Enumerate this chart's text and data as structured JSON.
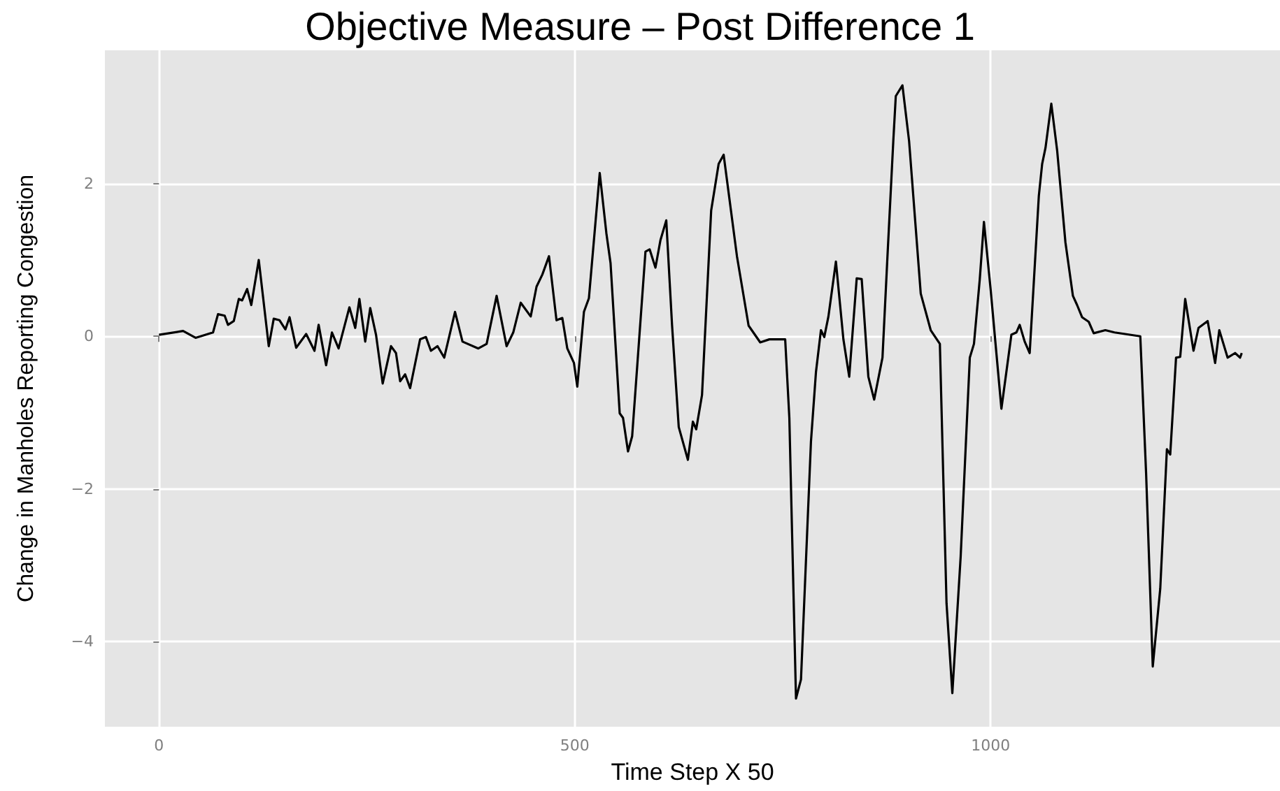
{
  "chart_data": {
    "type": "line",
    "title": "Objective Measure – Post Difference 1",
    "xlabel": "Time Step X 50",
    "ylabel": "Change in Manholes Reporting Congestion",
    "x": [
      0,
      29,
      44,
      65,
      71,
      79,
      83,
      90,
      96,
      100,
      106,
      111,
      120,
      132,
      138,
      145,
      152,
      157,
      165,
      177,
      187,
      192,
      201,
      208,
      216,
      229,
      236,
      241,
      248,
      254,
      261,
      269,
      279,
      285,
      290,
      296,
      302,
      314,
      321,
      327,
      335,
      343,
      356,
      365,
      384,
      394,
      406,
      418,
      426,
      435,
      447,
      454,
      461,
      469,
      478,
      485,
      491,
      499,
      503,
      511,
      517,
      530,
      538,
      543,
      554,
      558,
      564,
      569,
      585,
      590,
      597,
      603,
      610,
      617,
      625,
      636,
      642,
      646,
      653,
      664,
      673,
      679,
      695,
      709,
      723,
      734,
      753,
      758,
      766,
      772,
      784,
      790,
      796,
      800,
      805,
      814,
      823,
      830,
      839,
      845,
      853,
      860,
      870,
      876,
      883,
      886,
      894,
      902,
      916,
      928,
      939,
      947,
      954,
      964,
      975,
      980,
      987,
      992,
      1000,
      1013,
      1025,
      1031,
      1035,
      1041,
      1047,
      1058,
      1062,
      1066,
      1073,
      1080,
      1090,
      1099,
      1104,
      1110,
      1118,
      1124,
      1138,
      1149,
      1180,
      1187,
      1195,
      1204,
      1212,
      1216,
      1223,
      1228,
      1234,
      1244,
      1250,
      1261,
      1270,
      1275,
      1285,
      1294,
      1300,
      1302
    ],
    "series": [
      {
        "color": "#000000",
        "values": [
          0.02,
          0.07,
          -0.02,
          0.05,
          0.29,
          0.27,
          0.15,
          0.2,
          0.49,
          0.47,
          0.62,
          0.41,
          1.0,
          -0.13,
          0.23,
          0.21,
          0.09,
          0.25,
          -0.15,
          0.03,
          -0.19,
          0.15,
          -0.38,
          0.05,
          -0.16,
          0.38,
          0.11,
          0.49,
          -0.07,
          0.37,
          0.02,
          -0.62,
          -0.13,
          -0.22,
          -0.59,
          -0.5,
          -0.68,
          -0.04,
          -0.01,
          -0.19,
          -0.13,
          -0.28,
          0.32,
          -0.07,
          -0.16,
          -0.1,
          0.53,
          -0.13,
          0.05,
          0.44,
          0.26,
          0.65,
          0.81,
          1.05,
          0.21,
          0.24,
          -0.16,
          -0.35,
          -0.66,
          0.32,
          0.5,
          2.14,
          1.35,
          0.96,
          -1.01,
          -1.07,
          -1.51,
          -1.31,
          1.11,
          1.14,
          0.9,
          1.26,
          1.52,
          0.14,
          -1.19,
          -1.62,
          -1.12,
          -1.22,
          -0.77,
          1.65,
          2.26,
          2.38,
          1.05,
          0.14,
          -0.08,
          -0.04,
          -0.04,
          -1.07,
          -4.75,
          -4.5,
          -1.38,
          -0.47,
          0.08,
          -0.01,
          0.26,
          0.98,
          -0.04,
          -0.53,
          0.76,
          0.75,
          -0.53,
          -0.83,
          -0.28,
          1.05,
          2.56,
          3.15,
          3.29,
          2.56,
          0.56,
          0.08,
          -0.1,
          -3.5,
          -4.68,
          -2.89,
          -0.28,
          -0.1,
          0.75,
          1.5,
          0.62,
          -0.95,
          0.02,
          0.05,
          0.15,
          -0.07,
          -0.22,
          1.84,
          2.26,
          2.47,
          3.05,
          2.44,
          1.23,
          0.53,
          0.41,
          0.25,
          0.19,
          0.04,
          0.08,
          0.05,
          0,
          -1.8,
          -4.33,
          -3.31,
          -1.48,
          -1.55,
          -0.28,
          -0.27,
          0.49,
          -0.19,
          0.11,
          0.2,
          -0.35,
          0.08,
          -0.28,
          -0.22,
          -0.28,
          -0.22
        ]
      }
    ],
    "xlim": [
      -65,
      1348
    ],
    "xticks": [
      0,
      500,
      1000
    ],
    "ylim": [
      -5.12,
      3.75
    ],
    "yticks": [
      -4,
      -2,
      0,
      2
    ],
    "grid": true,
    "marker": "none",
    "line_style": "solid"
  }
}
